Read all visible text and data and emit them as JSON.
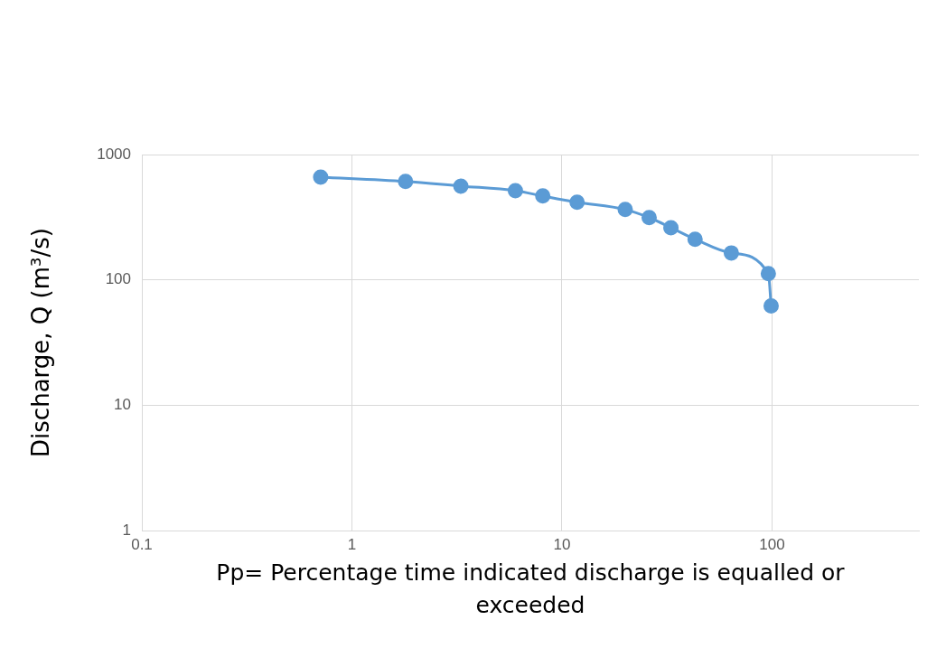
{
  "chart_data": {
    "type": "line",
    "xlabel": "Pp= Percentage time indicated discharge is equalled or exceeded",
    "ylabel": "Discharge, Q (m³/s)",
    "series": [
      {
        "color": "#5b9bd5",
        "x": [
          0.71,
          1.8,
          3.3,
          6.0,
          8.1,
          11.8,
          20,
          26,
          33,
          43,
          64,
          96,
          99
        ],
        "values": [
          660,
          610,
          560,
          515,
          467,
          416,
          364,
          314,
          261,
          211,
          164,
          112,
          62
        ]
      }
    ],
    "log": "xy",
    "xlim": [
      0.1,
      500
    ],
    "xticks": [
      0.1,
      1,
      10,
      100
    ],
    "ylim": [
      1,
      1000
    ],
    "yticks": [
      1,
      10,
      100,
      1000
    ],
    "grid": true,
    "marker": "circle",
    "line_style": "solid"
  }
}
